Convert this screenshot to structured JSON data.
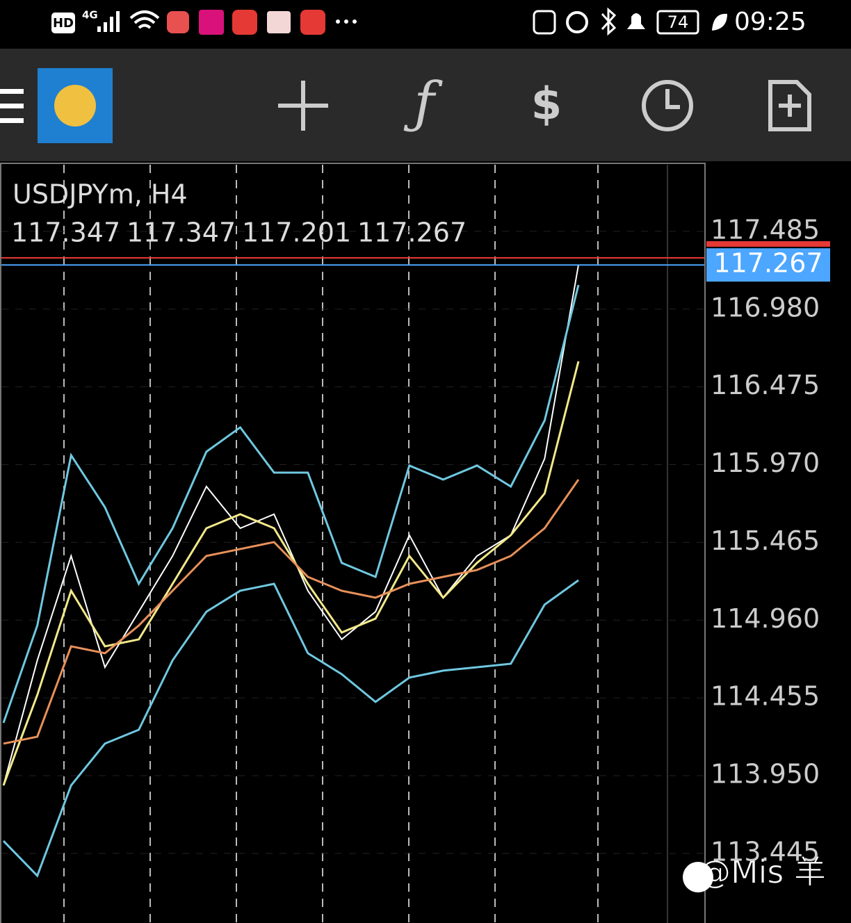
{
  "status_bar": {
    "network": "HD",
    "signal": "4G",
    "battery": "74",
    "time": "09:25"
  },
  "chart_data": {
    "type": "line",
    "title": "USDJPYm, H4",
    "ohlc": [
      117.347,
      117.347,
      117.201,
      117.267
    ],
    "x": [
      0,
      1,
      2,
      3,
      4,
      5,
      6,
      7,
      8,
      9,
      10,
      11,
      12,
      13,
      14,
      15,
      16,
      17
    ],
    "xlim": [
      0,
      17
    ],
    "ylim": [
      112.993,
      117.927
    ],
    "yticks": [
      117.485,
      {
        "value": 116.98,
        "label": "116.980"
      },
      116.475,
      {
        "value": 115.97,
        "label": "115.970"
      },
      115.465,
      {
        "value": 114.96,
        "label": "114.960"
      },
      114.455,
      {
        "value": 113.95,
        "label": "113.950"
      },
      113.445
    ],
    "bid": 117.267,
    "bid_color": "#4da6ff",
    "ask": 117.313,
    "ask_color": "#e53935",
    "series": [
      {
        "color": "#ffffff",
        "values": [
          113.887,
          114.699,
          115.377,
          114.654,
          115.015,
          115.377,
          115.828,
          115.557,
          115.648,
          115.151,
          114.835,
          115.015,
          115.512,
          115.106,
          115.377,
          115.512,
          116.009,
          117.267
        ]
      },
      {
        "color": "#6fc8e0",
        "values": [
          114.293,
          114.925,
          116.031,
          115.693,
          115.196,
          115.557,
          116.054,
          116.212,
          115.918,
          115.918,
          115.332,
          115.241,
          115.964,
          115.873,
          115.964,
          115.828,
          116.257,
          117.137
        ]
      },
      {
        "color": "#6fc8e0",
        "values": [
          113.526,
          113.3,
          113.887,
          114.158,
          114.248,
          114.699,
          115.015,
          115.151,
          115.196,
          114.745,
          114.609,
          114.429,
          114.587,
          114.632,
          114.654,
          114.677,
          115.061,
          115.219
        ]
      },
      {
        "color": "#f2e98a",
        "values": [
          113.887,
          114.474,
          115.151,
          114.79,
          114.835,
          115.196,
          115.557,
          115.648,
          115.557,
          115.196,
          114.88,
          114.97,
          115.377,
          115.106,
          115.332,
          115.512,
          115.783,
          116.641
        ]
      },
      {
        "color": "#e8905a",
        "values": [
          114.158,
          114.203,
          114.79,
          114.745,
          114.925,
          115.151,
          115.377,
          115.422,
          115.467,
          115.241,
          115.151,
          115.106,
          115.196,
          115.241,
          115.286,
          115.377,
          115.557,
          115.873
        ]
      }
    ]
  },
  "watermark": "@Mis 羊"
}
